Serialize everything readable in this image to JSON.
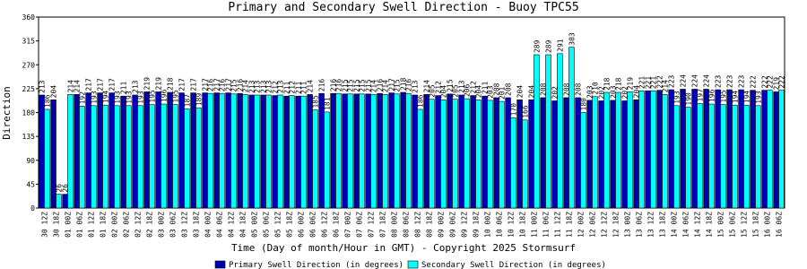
{
  "chart_data": {
    "type": "bar",
    "title": "Primary and Secondary Swell Direction - Buoy TPC55",
    "x_label": "Time (Day of month/Hour in GMT) - Copyright 2025 Stormsurf",
    "y_label": "Direction",
    "categories": [
      "30 12Z",
      "30 18Z",
      "01 00Z",
      "01 06Z",
      "01 12Z",
      "01 18Z",
      "02 00Z",
      "02 06Z",
      "02 12Z",
      "02 18Z",
      "03 00Z",
      "03 06Z",
      "03 12Z",
      "03 18Z",
      "04 00Z",
      "04 06Z",
      "04 12Z",
      "04 18Z",
      "05 00Z",
      "05 06Z",
      "05 12Z",
      "05 18Z",
      "06 00Z",
      "06 06Z",
      "06 12Z",
      "06 18Z",
      "07 00Z",
      "07 06Z",
      "07 12Z",
      "07 18Z",
      "08 00Z",
      "08 06Z",
      "08 12Z",
      "08 18Z",
      "09 00Z",
      "09 06Z",
      "09 12Z",
      "09 18Z",
      "10 00Z",
      "10 06Z",
      "10 12Z",
      "10 18Z",
      "11 00Z",
      "11 06Z",
      "11 12Z",
      "11 18Z",
      "12 00Z",
      "12 06Z",
      "12 12Z",
      "12 18Z",
      "13 00Z",
      "13 06Z",
      "13 12Z",
      "13 18Z",
      "14 00Z",
      "14 06Z",
      "14 12Z",
      "14 18Z",
      "15 00Z",
      "15 06Z",
      "15 12Z",
      "15 18Z",
      "16 00Z",
      "16 06Z"
    ],
    "series": [
      {
        "name": "Primary Swell Direction (in degrees)",
        "color": "#0000b0",
        "values": [
          213,
          204,
          26,
          214,
          217,
          217,
          217,
          211,
          213,
          219,
          219,
          218,
          217,
          217,
          217,
          217,
          217,
          216,
          213,
          213,
          212,
          211,
          211,
          214,
          216,
          216,
          215,
          215,
          215,
          216,
          217,
          218,
          213,
          214,
          212,
          215,
          213,
          212,
          211,
          208,
          208,
          204,
          204,
          208,
          202,
          208,
          208,
          203,
          202,
          203,
          202,
          204,
          221,
          222,
          223,
          224,
          224,
          224,
          223,
          223,
          223,
          222,
          222,
          219
        ]
      },
      {
        "name": "Secondary Swell Direction (in degrees)",
        "color": "#00ffff",
        "values": [
          186,
          26,
          214,
          192,
          193,
          194,
          193,
          193,
          193,
          195,
          196,
          195,
          187,
          189,
          216,
          216,
          215,
          214,
          213,
          213,
          213,
          212,
          211,
          185,
          181,
          216,
          215,
          215,
          214,
          214,
          215,
          216,
          186,
          205,
          204,
          205,
          206,
          204,
          203,
          201,
          170,
          166,
          289,
          289,
          291,
          303,
          180,
          210,
          218,
          218,
          219,
          221,
          221,
          214,
          193,
          190,
          197,
          196,
          195,
          194,
          194,
          193,
          222,
          222
        ]
      }
    ],
    "ylim": [
      0,
      360
    ],
    "yticks": [
      0,
      45,
      90,
      135,
      180,
      225,
      270,
      315,
      360
    ]
  }
}
